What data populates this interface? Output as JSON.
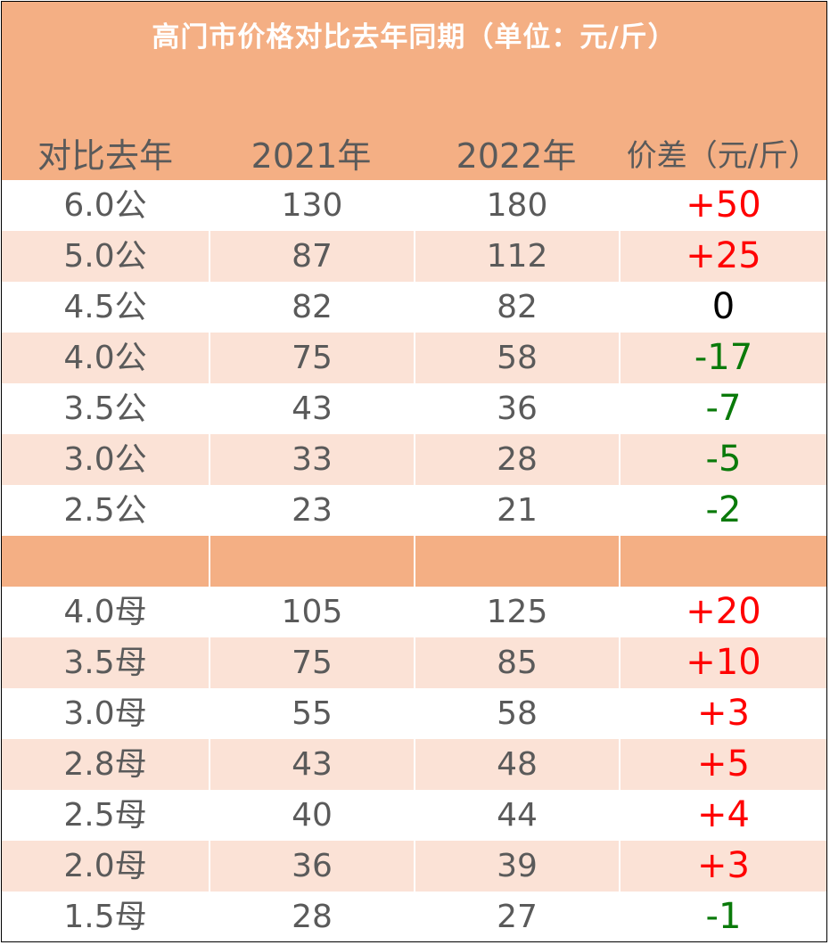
{
  "title": "高门市价格对比去年同期（单位：元/斤）",
  "headers": [
    "对比去年",
    "2021年",
    "2022年",
    "价差（元/斤）"
  ],
  "colors": {
    "header_bg": "#f4af84",
    "stripe": "#fbe2d6",
    "positive": "#ff0000",
    "negative": "#0a7a0a",
    "zero": "#000000"
  },
  "male_rows": [
    {
      "spec": "6.0公",
      "y2021": "130",
      "y2022": "180",
      "diff": "+50"
    },
    {
      "spec": "5.0公",
      "y2021": "87",
      "y2022": "112",
      "diff": "+25"
    },
    {
      "spec": "4.5公",
      "y2021": "82",
      "y2022": "82",
      "diff": "0"
    },
    {
      "spec": "4.0公",
      "y2021": "75",
      "y2022": "58",
      "diff": "-17"
    },
    {
      "spec": "3.5公",
      "y2021": "43",
      "y2022": "36",
      "diff": "-7"
    },
    {
      "spec": "3.0公",
      "y2021": "33",
      "y2022": "28",
      "diff": "-5"
    },
    {
      "spec": "2.5公",
      "y2021": "23",
      "y2022": "21",
      "diff": "-2"
    }
  ],
  "female_rows": [
    {
      "spec": "4.0母",
      "y2021": "105",
      "y2022": "125",
      "diff": "+20"
    },
    {
      "spec": "3.5母",
      "y2021": "75",
      "y2022": "85",
      "diff": "+10"
    },
    {
      "spec": "3.0母",
      "y2021": "55",
      "y2022": "58",
      "diff": "+3"
    },
    {
      "spec": "2.8母",
      "y2021": "43",
      "y2022": "48",
      "diff": "+5"
    },
    {
      "spec": "2.5母",
      "y2021": "40",
      "y2022": "44",
      "diff": "+4"
    },
    {
      "spec": "2.0母",
      "y2021": "36",
      "y2022": "39",
      "diff": "+3"
    },
    {
      "spec": "1.5母",
      "y2021": "28",
      "y2022": "27",
      "diff": "-1"
    }
  ]
}
